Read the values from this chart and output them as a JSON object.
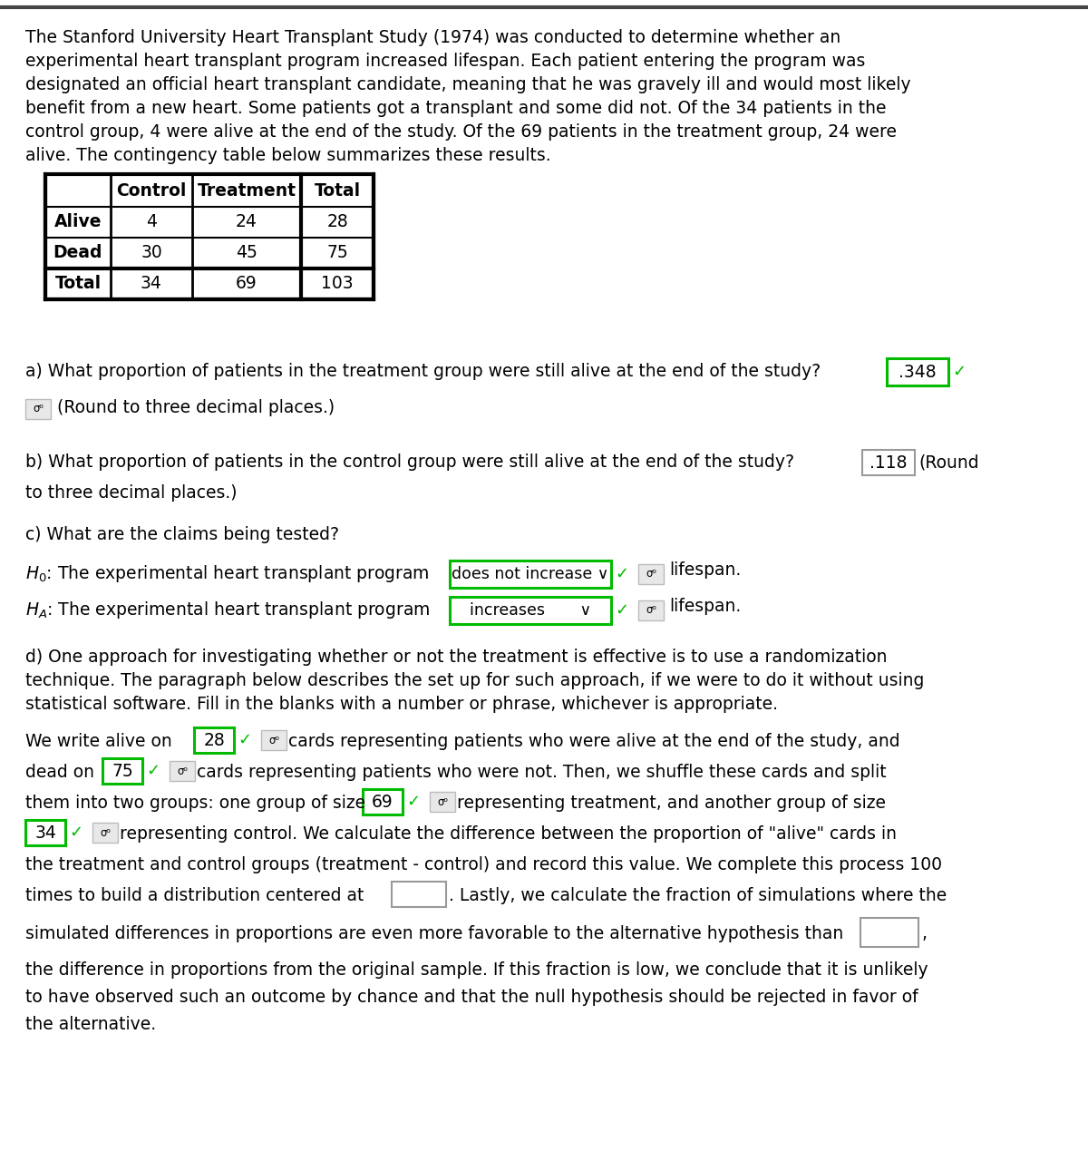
{
  "bg_color": "#ffffff",
  "green_color": "#00bb00",
  "gray_color": "#aaaaaa",
  "intro_lines": [
    "The Stanford University Heart Transplant Study (1974) was conducted to determine whether an",
    "experimental heart transplant program increased lifespan. Each patient entering the program was",
    "designated an official heart transplant candidate, meaning that he was gravely ill and would most likely",
    "benefit from a new heart. Some patients got a transplant and some did not. Of the 34 patients in the",
    "control group, 4 were alive at the end of the study. Of the 69 patients in the treatment group, 24 were",
    "alive. The contingency table below summarizes these results."
  ],
  "table_headers": [
    "",
    "Control",
    "Treatment",
    "Total"
  ],
  "table_rows": [
    [
      "Alive",
      "4",
      "24",
      "28"
    ],
    [
      "Dead",
      "30",
      "45",
      "75"
    ],
    [
      "Total",
      "34",
      "69",
      "103"
    ]
  ],
  "fs": 13.5,
  "fs_small": 11.0
}
